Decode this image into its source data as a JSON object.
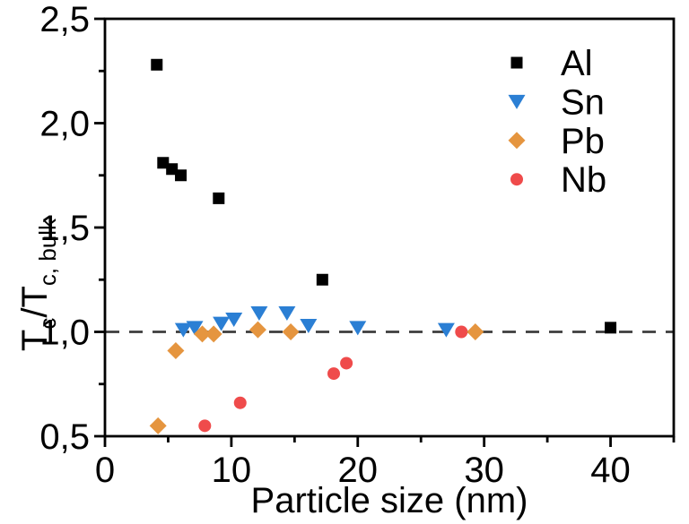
{
  "figure": {
    "background": "#ffffff"
  },
  "chart_data": {
    "type": "scatter",
    "title": "",
    "xlabel": "Particle size (nm)",
    "ylabel": "Tc/Tc, bulk",
    "ylabel_parts": [
      {
        "text": "T",
        "sub": false
      },
      {
        "text": "c",
        "sub": true
      },
      {
        "text": "/T",
        "sub": false
      },
      {
        "text": "c, bulk",
        "sub": true
      }
    ],
    "xlim": [
      0,
      45
    ],
    "ylim": [
      0.5,
      2.5
    ],
    "x_ticks": [
      {
        "value": 0,
        "label": "0"
      },
      {
        "value": 10,
        "label": "10"
      },
      {
        "value": 20,
        "label": "20"
      },
      {
        "value": 30,
        "label": "30"
      },
      {
        "value": 40,
        "label": "40"
      }
    ],
    "x_minor_ticks": [
      5,
      15,
      25,
      35,
      45
    ],
    "y_ticks": [
      {
        "value": 0.5,
        "label": "0,5"
      },
      {
        "value": 1.0,
        "label": "1,0"
      },
      {
        "value": 1.5,
        "label": "1,5"
      },
      {
        "value": 2.0,
        "label": "2,0"
      },
      {
        "value": 2.5,
        "label": "2,5"
      }
    ],
    "y_minor_ticks": [
      0.75,
      1.25,
      1.75,
      2.25
    ],
    "grid": false,
    "axis_color": "#000000",
    "reference_line": {
      "y": 1.0,
      "style": "dashed",
      "color": "#3d3d3d"
    },
    "legend_position": "top-right-inside",
    "draw_order": [
      "Al",
      "Sn",
      "Nb",
      "Pb"
    ],
    "series": [
      {
        "name": "Al",
        "marker": "square",
        "color": "#000000",
        "points": [
          [
            4.1,
            2.28
          ],
          [
            4.6,
            1.81
          ],
          [
            5.3,
            1.78
          ],
          [
            6.0,
            1.75
          ],
          [
            9.0,
            1.64
          ],
          [
            17.2,
            1.25
          ],
          [
            40.0,
            1.02
          ]
        ]
      },
      {
        "name": "Sn",
        "marker": "triangle-down",
        "color": "#2b7fd4",
        "points": [
          [
            6.2,
            1.01
          ],
          [
            7.1,
            1.02
          ],
          [
            9.2,
            1.04
          ],
          [
            10.2,
            1.06
          ],
          [
            12.2,
            1.09
          ],
          [
            14.4,
            1.09
          ],
          [
            16.1,
            1.03
          ],
          [
            20.0,
            1.02
          ],
          [
            27.0,
            1.01
          ]
        ]
      },
      {
        "name": "Pb",
        "marker": "diamond",
        "color": "#e5953f",
        "points": [
          [
            4.2,
            0.55
          ],
          [
            5.6,
            0.91
          ],
          [
            7.7,
            0.99
          ],
          [
            8.6,
            0.99
          ],
          [
            12.1,
            1.01
          ],
          [
            14.7,
            1.0
          ],
          [
            29.3,
            1.0
          ]
        ]
      },
      {
        "name": "Nb",
        "marker": "circle",
        "color": "#ef4b4b",
        "points": [
          [
            7.9,
            0.55
          ],
          [
            10.7,
            0.66
          ],
          [
            18.1,
            0.8
          ],
          [
            19.1,
            0.85
          ],
          [
            28.2,
            1.0
          ]
        ]
      }
    ]
  }
}
